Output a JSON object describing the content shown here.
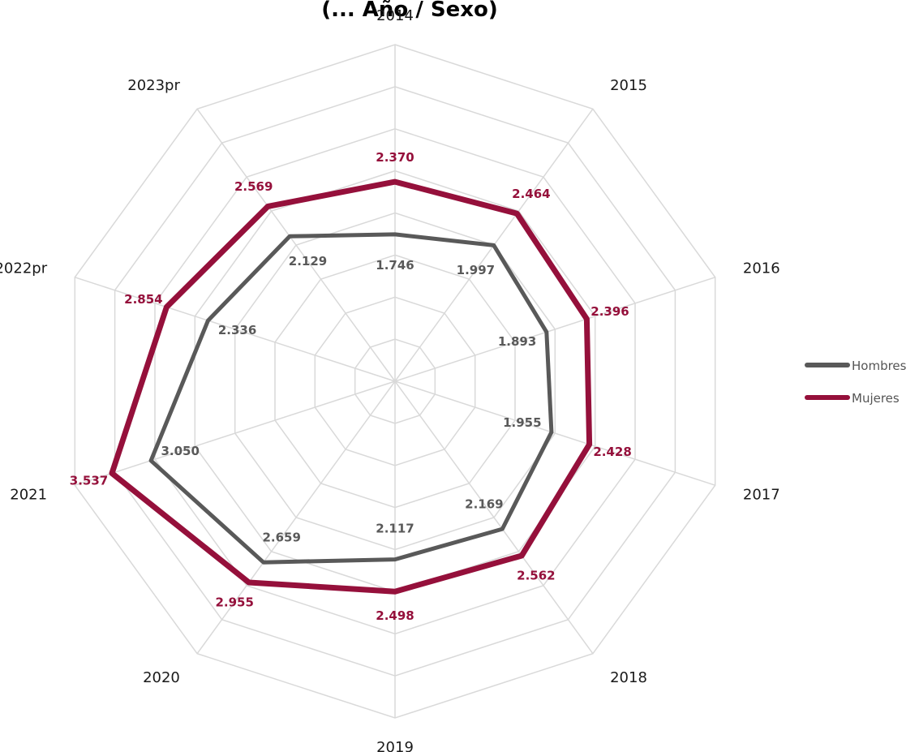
{
  "chart_data": {
    "type": "radar",
    "title": "(... Año / Sexo)",
    "categories": [
      "2014",
      "2015",
      "2016",
      "2017",
      "2018",
      "2019",
      "2020",
      "2021",
      "2022pr",
      "2023pr"
    ],
    "series": [
      {
        "name": "Hombres",
        "color": "#595959",
        "values": [
          1.746,
          1.997,
          1.893,
          1.955,
          2.169,
          2.117,
          2.659,
          3.05,
          2.336,
          2.129
        ],
        "labels": [
          "1.746",
          "1.997",
          "1.893",
          "1.955",
          "2.169",
          "2.117",
          "2.659",
          "3.050",
          "2.336",
          "2.129"
        ]
      },
      {
        "name": "Mujeres",
        "color": "#95103b",
        "values": [
          2.37,
          2.464,
          2.396,
          2.428,
          2.562,
          2.498,
          2.955,
          3.537,
          2.854,
          2.569
        ],
        "labels": [
          "2.370",
          "2.464",
          "2.396",
          "2.428",
          "2.562",
          "2.498",
          "2.955",
          "3.537",
          "2.854",
          "2.569"
        ]
      }
    ],
    "rlim": [
      0,
      4.0
    ],
    "grid": true,
    "legend_position": "right"
  }
}
